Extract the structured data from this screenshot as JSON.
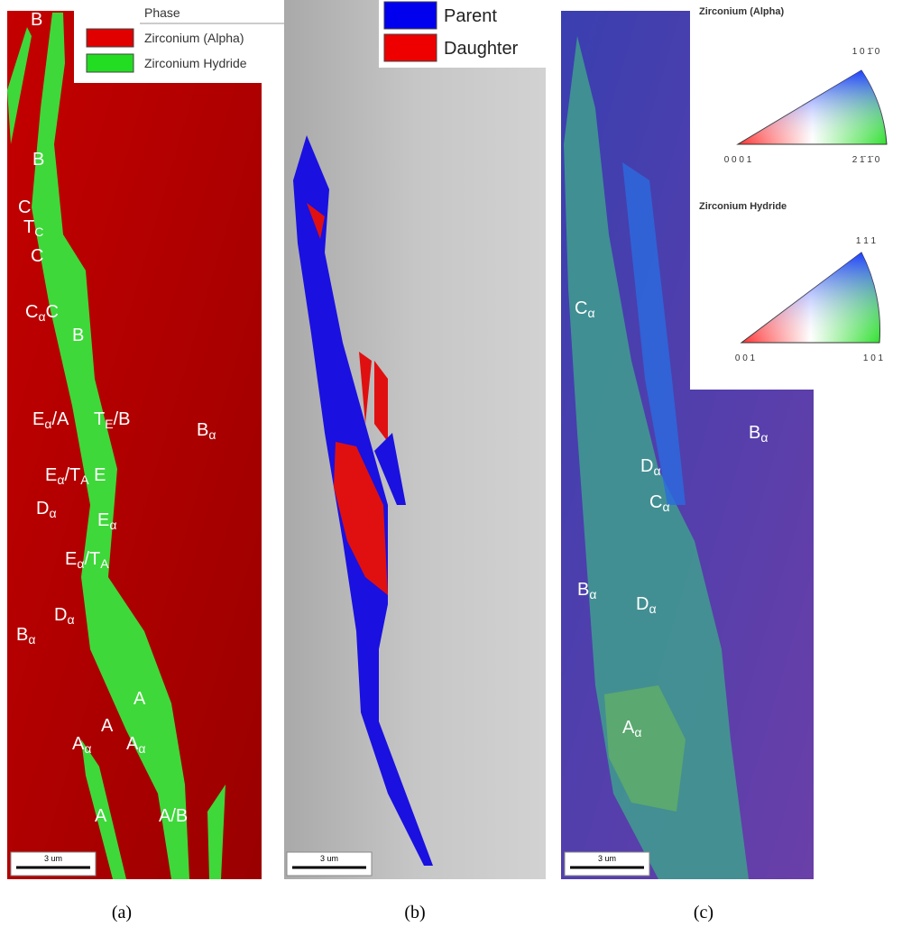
{
  "panels": [
    {
      "caption": "(a)",
      "legend": {
        "title": "Phase",
        "entries": [
          {
            "name": "Zirconium (Alpha)",
            "color": "#e00000"
          },
          {
            "name": "Zirconium Hydride",
            "color": "#22dd22"
          }
        ]
      },
      "scale_bar": "3 um",
      "labels": [
        [
          "B"
        ],
        [
          "B"
        ],
        [
          "C"
        ],
        [
          "T",
          {
            "sub": "C"
          }
        ],
        [
          "C"
        ],
        [
          "C",
          {
            "sub": "α"
          },
          "C"
        ],
        [
          "B"
        ],
        [
          "E",
          {
            "sub": "α"
          },
          "/A"
        ],
        [
          "T",
          {
            "sub": "E"
          },
          "/B"
        ],
        [
          "B",
          {
            "sub": "α"
          }
        ],
        [
          "E",
          {
            "sub": "α"
          },
          "/T",
          {
            "sub": "A"
          },
          " E"
        ],
        [
          "D",
          {
            "sub": "α"
          }
        ],
        [
          "E",
          {
            "sub": "α"
          }
        ],
        [
          "E",
          {
            "sub": "α"
          },
          "/T",
          {
            "sub": "A"
          }
        ],
        [
          "D",
          {
            "sub": "α"
          }
        ],
        [
          "B",
          {
            "sub": "α"
          }
        ],
        [
          "A"
        ],
        [
          "A"
        ],
        [
          "A",
          {
            "sub": "α"
          }
        ],
        [
          "A",
          {
            "sub": "α"
          }
        ],
        [
          "A"
        ],
        [
          "A/B"
        ]
      ]
    },
    {
      "caption": "(b)",
      "legend": {
        "entries": [
          {
            "name": "Parent",
            "color": "#0000ee"
          },
          {
            "name": "Daughter",
            "color": "#ee0000"
          }
        ]
      },
      "scale_bar": "3 um"
    },
    {
      "caption": "(c)",
      "scale_bar": "3 um",
      "labels": [
        [
          "C",
          {
            "sub": "α"
          }
        ],
        [
          "B",
          {
            "sub": "α"
          }
        ],
        [
          "D",
          {
            "sub": "α"
          }
        ],
        [
          "C",
          {
            "sub": "α"
          }
        ],
        [
          "B",
          {
            "sub": "α"
          }
        ],
        [
          "D",
          {
            "sub": "α"
          }
        ],
        [
          "A",
          {
            "sub": "α"
          }
        ]
      ],
      "keys": [
        {
          "title": "Zirconium (Alpha)",
          "corners": [
            "1 0 1̄ 0",
            "0 0 0 1",
            "2 1̄ 1̄ 0"
          ]
        },
        {
          "title": "Zirconium Hydride",
          "corners": [
            "1 1 1",
            "0 0 1",
            "1 0 1"
          ]
        }
      ]
    }
  ]
}
